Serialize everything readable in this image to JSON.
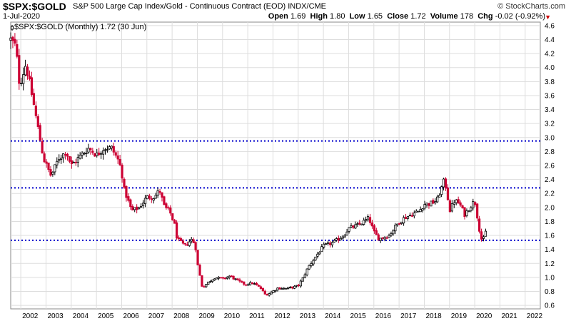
{
  "header": {
    "ticker": "$SPX:$GOLD",
    "description": "S&P 500 Large Cap Index/Gold - Continuous Contract (EOD) INDX/CME",
    "date": "1-Jul-2020",
    "brand": "© StockCharts.com",
    "open_label": "Open",
    "open": "1.69",
    "high_label": "High",
    "high": "1.80",
    "low_label": "Low",
    "low": "1.65",
    "close_label": "Close",
    "close": "1.72",
    "volume_label": "Volume",
    "volume": "178",
    "chg_label": "Chg",
    "chg": "-0.02 (-0.92%)",
    "chg_icon": "triangle-down-icon"
  },
  "legend": {
    "text": "$SPX:$GOLD (Monthly) 1.72 (30 Jun)"
  },
  "colors": {
    "up": "#000000",
    "down": "#cc0033",
    "hline": "#0000cc",
    "grid": "#dddddd"
  },
  "chart_data": {
    "type": "candlestick",
    "title": "$SPX:$GOLD (Monthly) 1.72 (30 Jun)",
    "x_ticks": [
      "2002",
      "2003",
      "2004",
      "2005",
      "2006",
      "2007",
      "2008",
      "2009",
      "2010",
      "2011",
      "2012",
      "2013",
      "2014",
      "2015",
      "2016",
      "2017",
      "2018",
      "2019",
      "2020",
      "2021",
      "2022"
    ],
    "y_ticks": [
      "0.6",
      "0.8",
      "1.0",
      "1.2",
      "1.4",
      "1.6",
      "1.8",
      "2.0",
      "2.2",
      "2.4",
      "2.6",
      "2.8",
      "3.0",
      "3.2",
      "3.4",
      "3.6",
      "3.8",
      "4.0",
      "4.2",
      "4.4",
      "4.6"
    ],
    "ylim": [
      0.55,
      4.65
    ],
    "xlim": [
      2001.6,
      2022.6
    ],
    "grid": true,
    "horizontal_lines": [
      2.95,
      2.28,
      1.53
    ],
    "anchors": [
      [
        2001.6,
        4.4
      ],
      [
        2001.8,
        4.3
      ],
      [
        2001.95,
        3.75
      ],
      [
        2002.2,
        4.05
      ],
      [
        2002.5,
        3.5
      ],
      [
        2002.7,
        3.1
      ],
      [
        2002.9,
        2.7
      ],
      [
        2003.2,
        2.45
      ],
      [
        2003.5,
        2.7
      ],
      [
        2003.8,
        2.8
      ],
      [
        2004.0,
        2.6
      ],
      [
        2004.4,
        2.75
      ],
      [
        2004.7,
        2.85
      ],
      [
        2005.0,
        2.75
      ],
      [
        2005.3,
        2.85
      ],
      [
        2005.6,
        2.85
      ],
      [
        2005.9,
        2.65
      ],
      [
        2006.0,
        2.5
      ],
      [
        2006.1,
        2.25
      ],
      [
        2006.4,
        1.95
      ],
      [
        2006.7,
        2.0
      ],
      [
        2007.0,
        2.15
      ],
      [
        2007.3,
        2.15
      ],
      [
        2007.5,
        2.25
      ],
      [
        2007.7,
        2.0
      ],
      [
        2007.9,
        1.95
      ],
      [
        2008.1,
        1.75
      ],
      [
        2008.2,
        1.55
      ],
      [
        2008.5,
        1.45
      ],
      [
        2008.8,
        1.55
      ],
      [
        2008.95,
        1.4
      ],
      [
        2009.0,
        1.2
      ],
      [
        2009.2,
        0.85
      ],
      [
        2009.4,
        0.92
      ],
      [
        2009.7,
        1.0
      ],
      [
        2010.0,
        0.98
      ],
      [
        2010.3,
        1.02
      ],
      [
        2010.6,
        0.95
      ],
      [
        2010.9,
        0.9
      ],
      [
        2011.2,
        0.92
      ],
      [
        2011.5,
        0.85
      ],
      [
        2011.7,
        0.75
      ],
      [
        2011.9,
        0.78
      ],
      [
        2012.2,
        0.85
      ],
      [
        2012.5,
        0.84
      ],
      [
        2012.8,
        0.86
      ],
      [
        2013.0,
        0.88
      ],
      [
        2013.2,
        1.0
      ],
      [
        2013.4,
        1.15
      ],
      [
        2013.7,
        1.3
      ],
      [
        2014.0,
        1.45
      ],
      [
        2014.4,
        1.5
      ],
      [
        2014.8,
        1.6
      ],
      [
        2015.0,
        1.7
      ],
      [
        2015.4,
        1.75
      ],
      [
        2015.8,
        1.85
      ],
      [
        2016.0,
        1.65
      ],
      [
        2016.2,
        1.55
      ],
      [
        2016.6,
        1.6
      ],
      [
        2016.9,
        1.75
      ],
      [
        2017.2,
        1.85
      ],
      [
        2017.5,
        1.9
      ],
      [
        2017.8,
        1.95
      ],
      [
        2018.0,
        2.05
      ],
      [
        2018.2,
        2.05
      ],
      [
        2018.5,
        2.1
      ],
      [
        2018.8,
        2.4
      ],
      [
        2018.95,
        2.1
      ],
      [
        2019.0,
        1.95
      ],
      [
        2019.2,
        2.1
      ],
      [
        2019.4,
        2.05
      ],
      [
        2019.6,
        1.9
      ],
      [
        2019.8,
        2.0
      ],
      [
        2020.0,
        2.1
      ],
      [
        2020.2,
        1.65
      ],
      [
        2020.3,
        1.5
      ],
      [
        2020.5,
        1.72
      ]
    ]
  }
}
